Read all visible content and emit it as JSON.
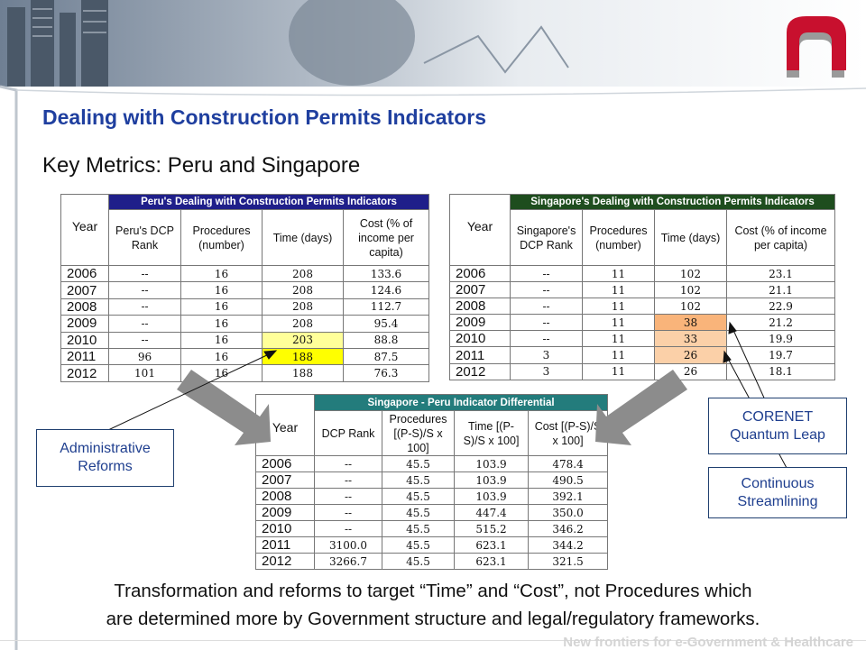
{
  "title": "Dealing with Construction Permits Indicators",
  "subtitle": "Key Metrics: Peru and Singapore",
  "tables": [
    {
      "title": "Peru's Dealing with Construction Permits Indicators",
      "headers": [
        "Year",
        "Peru's DCP Rank",
        "Procedures (number)",
        "Time (days)",
        "Cost (% of income per capita)"
      ],
      "rows": [
        [
          "2006",
          "--",
          "16",
          "208",
          "133.6"
        ],
        [
          "2007",
          "--",
          "16",
          "208",
          "124.6"
        ],
        [
          "2008",
          "--",
          "16",
          "208",
          "112.7"
        ],
        [
          "2009",
          "--",
          "16",
          "208",
          "95.4"
        ],
        [
          "2010",
          "--",
          "16",
          "203",
          "88.8"
        ],
        [
          "2011",
          "96",
          "16",
          "188",
          "87.5"
        ],
        [
          "2012",
          "101",
          "16",
          "188",
          "76.3"
        ]
      ]
    },
    {
      "title": "Singapore's Dealing with Construction Permits Indicators",
      "headers": [
        "Year",
        "Singapore's DCP Rank",
        "Procedures (number)",
        "Time (days)",
        "Cost (% of income per capita)"
      ],
      "rows": [
        [
          "2006",
          "--",
          "11",
          "102",
          "23.1"
        ],
        [
          "2007",
          "--",
          "11",
          "102",
          "21.1"
        ],
        [
          "2008",
          "--",
          "11",
          "102",
          "22.9"
        ],
        [
          "2009",
          "--",
          "11",
          "38",
          "21.2"
        ],
        [
          "2010",
          "--",
          "11",
          "33",
          "19.9"
        ],
        [
          "2011",
          "3",
          "11",
          "26",
          "19.7"
        ],
        [
          "2012",
          "3",
          "11",
          "26",
          "18.1"
        ]
      ]
    },
    {
      "title": "Singapore - Peru Indicator Differential",
      "headers": [
        "Year",
        "DCP Rank",
        "Procedures [(P-S)/S x 100]",
        "Time [(P-S)/S x 100]",
        "Cost [(P-S)/S x 100]"
      ],
      "rows": [
        [
          "2006",
          "--",
          "45.5",
          "103.9",
          "478.4"
        ],
        [
          "2007",
          "--",
          "45.5",
          "103.9",
          "490.5"
        ],
        [
          "2008",
          "--",
          "45.5",
          "103.9",
          "392.1"
        ],
        [
          "2009",
          "--",
          "45.5",
          "447.4",
          "350.0"
        ],
        [
          "2010",
          "--",
          "45.5",
          "515.2",
          "346.2"
        ],
        [
          "2011",
          "3100.0",
          "45.5",
          "623.1",
          "344.2"
        ],
        [
          "2012",
          "3266.7",
          "45.5",
          "623.1",
          "321.5"
        ]
      ]
    }
  ],
  "callouts": [
    "Administrative Reforms",
    "CORENET Quantum Leap",
    "Continuous Streamlining"
  ],
  "conclusion": [
    "Transformation and reforms to target “Time” and “Cost”, not Procedures which",
    "are determined more by Government structure and legal/regulatory frameworks."
  ],
  "footer": "New frontiers for e-Government & Healthcare"
}
